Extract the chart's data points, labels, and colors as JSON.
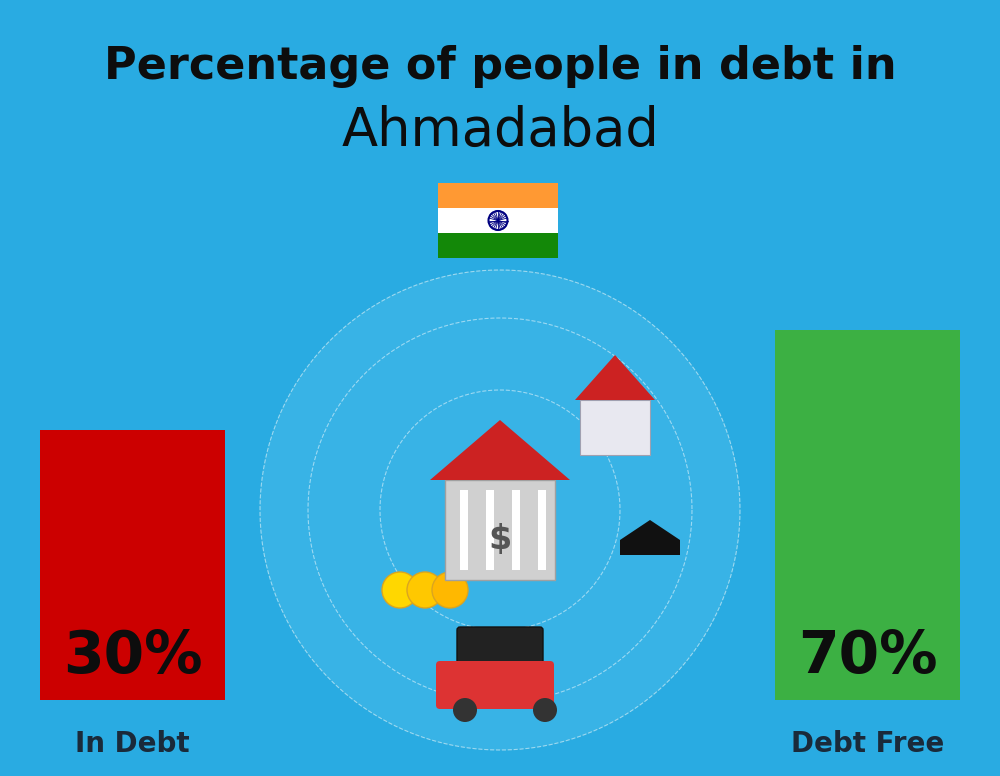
{
  "title_line1": "Percentage of people in debt in",
  "title_line2": "Ahmadabad",
  "background_color": "#29ABE2",
  "bar1_label": "30%",
  "bar1_color": "#CC0000",
  "bar1_caption": "In Debt",
  "bar2_label": "70%",
  "bar2_color": "#3CB043",
  "bar2_caption": "Debt Free",
  "title_fontsize": 32,
  "title2_fontsize": 38,
  "bar_label_fontsize": 42,
  "bar_caption_fontsize": 20,
  "title_color": "#0d0d0d",
  "caption_color": "#1a2a3a",
  "bar_label_color": "#0d0d0d",
  "flag_saffron": "#FF9933",
  "flag_white": "#FFFFFF",
  "flag_green": "#138808",
  "flag_navy": "#000080"
}
